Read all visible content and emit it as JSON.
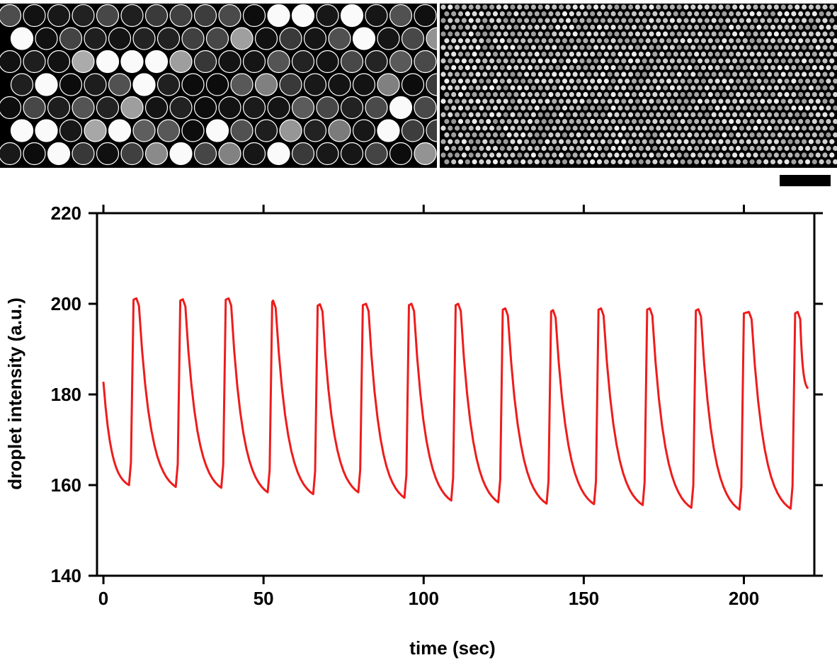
{
  "figure": {
    "panel_a": {
      "description_icon": "large-droplet-array-image"
    },
    "panel_b": {
      "description_icon": "dense-droplet-lattice-image"
    },
    "scale_bar": {
      "icon": "scale-bar"
    }
  },
  "colors": {
    "series": "#ee1c1c",
    "axis": "#000000",
    "image_bg": "#000000"
  },
  "chart_data": {
    "type": "line",
    "title": "",
    "xlabel": "time (sec)",
    "ylabel": "droplet intensity (a.u.)",
    "xlim": [
      -2,
      222
    ],
    "ylim": [
      140,
      220
    ],
    "xticks": [
      0,
      50,
      100,
      150,
      200
    ],
    "yticks": [
      140,
      160,
      180,
      200,
      220
    ],
    "grid": false,
    "series": [
      {
        "name": "droplet intensity",
        "period_sec": 14.6,
        "peaks": [
          {
            "t": 10.3,
            "v": 201.2
          },
          {
            "t": 24.8,
            "v": 201.0
          },
          {
            "t": 39.1,
            "v": 201.2
          },
          {
            "t": 53.0,
            "v": 200.7
          },
          {
            "t": 67.6,
            "v": 199.9
          },
          {
            "t": 82.0,
            "v": 200.0
          },
          {
            "t": 96.2,
            "v": 200.0
          },
          {
            "t": 110.8,
            "v": 200.0
          },
          {
            "t": 125.5,
            "v": 199.0
          },
          {
            "t": 140.4,
            "v": 198.6
          },
          {
            "t": 155.4,
            "v": 199.0
          },
          {
            "t": 170.6,
            "v": 199.0
          },
          {
            "t": 185.8,
            "v": 198.8
          },
          {
            "t": 201.6,
            "v": 198.2
          },
          {
            "t": 216.8,
            "v": 198.2
          }
        ],
        "troughs": [
          {
            "t": 8.0,
            "v": 160.0
          },
          {
            "t": 22.6,
            "v": 159.6
          },
          {
            "t": 36.8,
            "v": 159.4
          },
          {
            "t": 51.3,
            "v": 158.4
          },
          {
            "t": 65.5,
            "v": 158.0
          },
          {
            "t": 79.6,
            "v": 158.4
          },
          {
            "t": 94.0,
            "v": 157.2
          },
          {
            "t": 108.6,
            "v": 156.6
          },
          {
            "t": 123.3,
            "v": 156.2
          },
          {
            "t": 138.4,
            "v": 155.9
          },
          {
            "t": 153.2,
            "v": 155.8
          },
          {
            "t": 168.4,
            "v": 155.6
          },
          {
            "t": 183.6,
            "v": 155.0
          },
          {
            "t": 198.6,
            "v": 154.6
          },
          {
            "t": 214.6,
            "v": 154.8
          }
        ],
        "start": {
          "t": 0.0,
          "v": 182.8
        },
        "end": {
          "t": 220.0,
          "v": 181.3
        }
      }
    ]
  }
}
